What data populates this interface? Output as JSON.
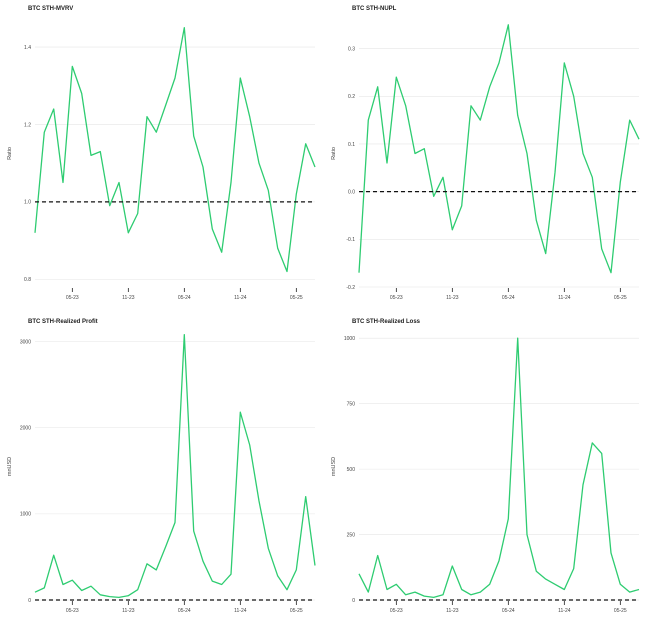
{
  "colors": {
    "line": "#2ecc71",
    "grid": "#e6e6e6",
    "reference": "#111111"
  },
  "chart_data": [
    {
      "type": "line",
      "title": "BTC STH-MVRV",
      "ylabel": "Ratio",
      "xlabel": "",
      "x_ticks": [
        "05-23",
        "11-23",
        "05-24",
        "11-24",
        "05-25"
      ],
      "y_ticks": [
        "0.8",
        "1.0",
        "1.2",
        "1.4"
      ],
      "y_tick_values": [
        0.8,
        1.0,
        1.2,
        1.4
      ],
      "ylim": [
        0.78,
        1.47
      ],
      "xlim": [
        "2023-01",
        "2025-07"
      ],
      "reference_line": 1.0,
      "grid": true,
      "series": [
        {
          "x": [
            "2023-01",
            "2023-02",
            "2023-03",
            "2023-04",
            "2023-05",
            "2023-06",
            "2023-07",
            "2023-08",
            "2023-09",
            "2023-10",
            "2023-11",
            "2023-12",
            "2024-01",
            "2024-02",
            "2024-03",
            "2024-04",
            "2024-05",
            "2024-06",
            "2024-07",
            "2024-08",
            "2024-09",
            "2024-10",
            "2024-11",
            "2024-12",
            "2025-01",
            "2025-02",
            "2025-03",
            "2025-04",
            "2025-05",
            "2025-06",
            "2025-07"
          ],
          "values": [
            0.92,
            1.18,
            1.24,
            1.05,
            1.35,
            1.28,
            1.12,
            1.13,
            0.99,
            1.05,
            0.92,
            0.97,
            1.22,
            1.18,
            1.25,
            1.32,
            1.45,
            1.17,
            1.09,
            0.93,
            0.87,
            1.05,
            1.32,
            1.22,
            1.1,
            1.03,
            0.88,
            0.82,
            1.02,
            1.15,
            1.09
          ]
        }
      ]
    },
    {
      "type": "line",
      "title": "BTC STH-NUPL",
      "ylabel": "Ratio",
      "xlabel": "",
      "x_ticks": [
        "05-23",
        "11-23",
        "05-24",
        "11-24",
        "05-25"
      ],
      "y_ticks": [
        "-0.2",
        "-0.1",
        "0.0",
        "0.1",
        "0.2",
        "0.3"
      ],
      "y_tick_values": [
        -0.2,
        -0.1,
        0.0,
        0.1,
        0.2,
        0.3
      ],
      "ylim": [
        -0.2,
        0.36
      ],
      "xlim": [
        "2023-01",
        "2025-07"
      ],
      "reference_line": 0.0,
      "grid": true,
      "series": [
        {
          "x": [
            "2023-01",
            "2023-02",
            "2023-03",
            "2023-04",
            "2023-05",
            "2023-06",
            "2023-07",
            "2023-08",
            "2023-09",
            "2023-10",
            "2023-11",
            "2023-12",
            "2024-01",
            "2024-02",
            "2024-03",
            "2024-04",
            "2024-05",
            "2024-06",
            "2024-07",
            "2024-08",
            "2024-09",
            "2024-10",
            "2024-11",
            "2024-12",
            "2025-01",
            "2025-02",
            "2025-03",
            "2025-04",
            "2025-05",
            "2025-06",
            "2025-07"
          ],
          "values": [
            -0.17,
            0.15,
            0.22,
            0.06,
            0.24,
            0.18,
            0.08,
            0.09,
            -0.01,
            0.03,
            -0.08,
            -0.03,
            0.18,
            0.15,
            0.22,
            0.27,
            0.35,
            0.16,
            0.08,
            -0.06,
            -0.13,
            0.04,
            0.27,
            0.2,
            0.08,
            0.03,
            -0.12,
            -0.17,
            0.02,
            0.15,
            0.11
          ]
        }
      ]
    },
    {
      "type": "line",
      "title": "BTC STH-Realized Profit",
      "ylabel": "mnUSD",
      "xlabel": "",
      "x_ticks": [
        "05-23",
        "11-23",
        "05-24",
        "11-24",
        "05-25"
      ],
      "y_ticks": [
        "0",
        "1000",
        "2000",
        "3000"
      ],
      "y_tick_values": [
        0,
        1000,
        2000,
        3000
      ],
      "ylim": [
        0,
        3100
      ],
      "xlim": [
        "2023-01",
        "2025-07"
      ],
      "reference_line": 0,
      "grid": true,
      "series": [
        {
          "x": [
            "2023-01",
            "2023-02",
            "2023-03",
            "2023-04",
            "2023-05",
            "2023-06",
            "2023-07",
            "2023-08",
            "2023-09",
            "2023-10",
            "2023-11",
            "2023-12",
            "2024-01",
            "2024-02",
            "2024-03",
            "2024-04",
            "2024-05",
            "2024-06",
            "2024-07",
            "2024-08",
            "2024-09",
            "2024-10",
            "2024-11",
            "2024-12",
            "2025-01",
            "2025-02",
            "2025-03",
            "2025-04",
            "2025-05",
            "2025-06",
            "2025-07"
          ],
          "values": [
            90,
            140,
            520,
            180,
            230,
            110,
            160,
            60,
            40,
            30,
            50,
            120,
            420,
            350,
            620,
            900,
            3080,
            800,
            450,
            220,
            180,
            300,
            2180,
            1800,
            1150,
            600,
            280,
            120,
            350,
            1200,
            400
          ]
        }
      ]
    },
    {
      "type": "line",
      "title": "BTC STH-Realized Loss",
      "ylabel": "mnUSD",
      "xlabel": "",
      "x_ticks": [
        "05-23",
        "11-23",
        "05-24",
        "11-24",
        "05-25"
      ],
      "y_ticks": [
        "0",
        "250",
        "500",
        "750",
        "1000"
      ],
      "y_tick_values": [
        0,
        250,
        500,
        750,
        1000
      ],
      "ylim": [
        0,
        1020
      ],
      "xlim": [
        "2023-01",
        "2025-07"
      ],
      "reference_line": 0,
      "grid": true,
      "series": [
        {
          "x": [
            "2023-01",
            "2023-02",
            "2023-03",
            "2023-04",
            "2023-05",
            "2023-06",
            "2023-07",
            "2023-08",
            "2023-09",
            "2023-10",
            "2023-11",
            "2023-12",
            "2024-01",
            "2024-02",
            "2024-03",
            "2024-04",
            "2024-05",
            "2024-06",
            "2024-07",
            "2024-08",
            "2024-09",
            "2024-10",
            "2024-11",
            "2024-12",
            "2025-01",
            "2025-02",
            "2025-03",
            "2025-04",
            "2025-05",
            "2025-06",
            "2025-07"
          ],
          "values": [
            100,
            30,
            170,
            40,
            60,
            20,
            30,
            15,
            10,
            20,
            130,
            40,
            20,
            30,
            60,
            150,
            310,
            1000,
            250,
            110,
            80,
            60,
            40,
            120,
            440,
            600,
            560,
            180,
            60,
            30,
            40
          ]
        }
      ]
    }
  ]
}
